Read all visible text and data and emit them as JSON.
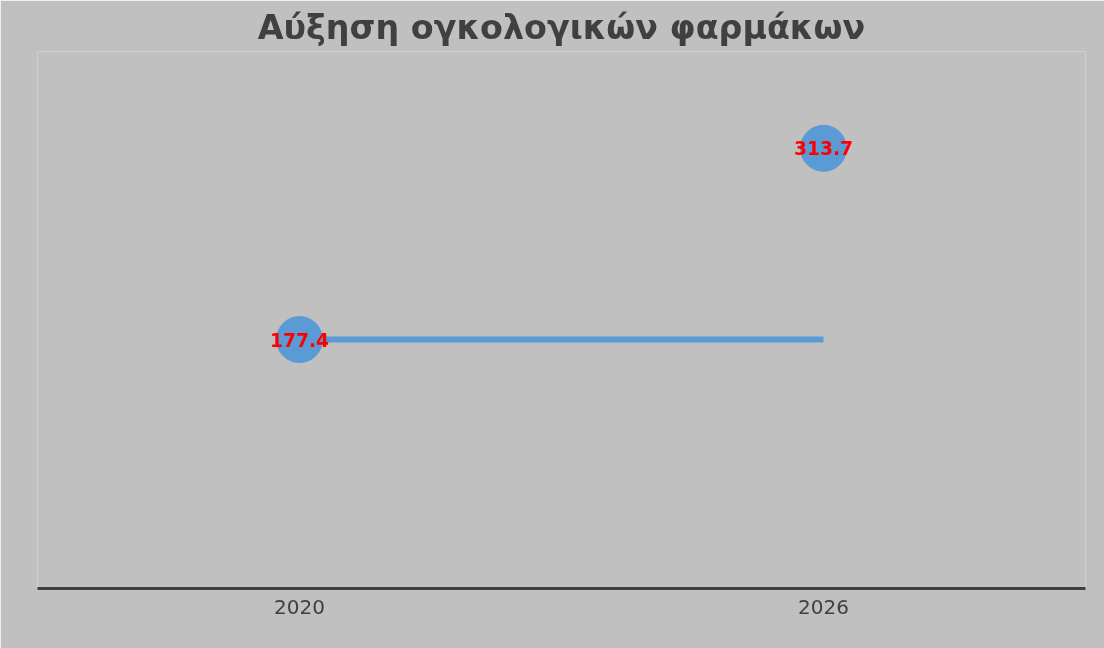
{
  "chart_data": {
    "type": "line",
    "title": "Αύξηση ογκολογικών φαρμάκων",
    "categories": [
      "2020",
      "2026"
    ],
    "series": [
      {
        "type": "scatter",
        "color": "#5b9bd5",
        "values": [
          177.4,
          313.7
        ],
        "value_labels": [
          "177.4",
          "313.7"
        ],
        "marker": "circle"
      },
      {
        "color": "#5b9bd5",
        "values": [
          177.4,
          177.4
        ],
        "marker": "none"
      }
    ],
    "tick_labels": "x",
    "grid": false
  }
}
